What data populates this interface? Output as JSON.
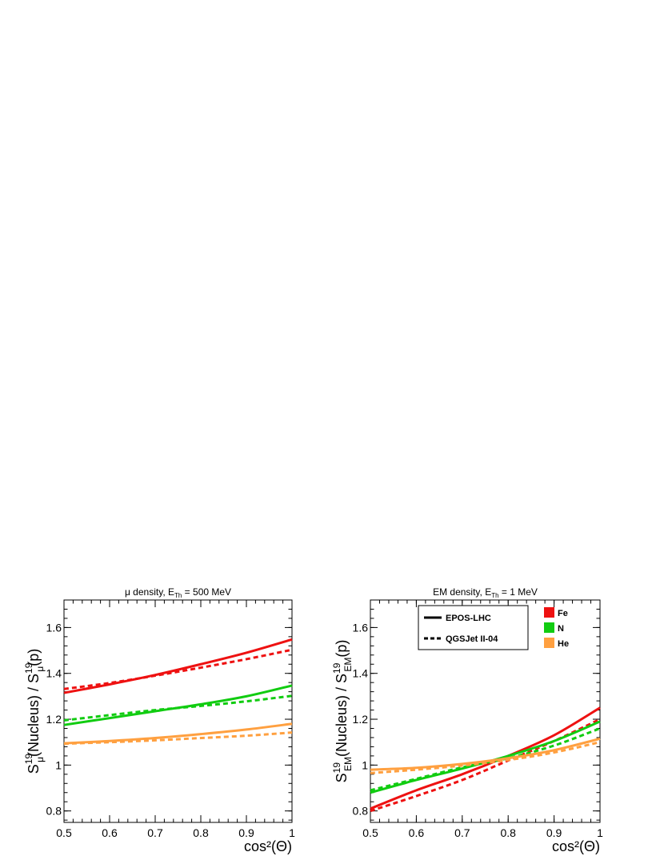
{
  "chart_data": [
    {
      "type": "line",
      "title": "μ density, E",
      "title_sub": "Th",
      "title_rest": " = 500 MeV",
      "ylabel": "S_μ^19(Nucleus) / S_μ^19(p)",
      "xlabel": "cos²(Θ)",
      "xlim": [
        0.5,
        1.0
      ],
      "ylim": [
        0.75,
        1.72
      ],
      "x_ticks": [
        0.5,
        0.6,
        0.7,
        0.8,
        0.9,
        1.0
      ],
      "x_tick_labels": [
        "0.5",
        "0.6",
        "0.7",
        "0.8",
        "0.9",
        "1"
      ],
      "y_ticks": [
        0.8,
        1.0,
        1.2,
        1.4,
        1.6
      ],
      "y_tick_labels": [
        "0.8",
        "1",
        "1.2",
        "1.4",
        "1.6"
      ],
      "x": [
        0.5,
        0.6,
        0.7,
        0.8,
        0.9,
        1.0
      ],
      "series": [
        {
          "name": "Fe",
          "model": "EPOS-LHC",
          "color": "#ee1111",
          "dash": "solid",
          "values": [
            1.315,
            1.352,
            1.393,
            1.44,
            1.49,
            1.548
          ]
        },
        {
          "name": "Fe",
          "model": "QGSJet II-04",
          "color": "#ee1111",
          "dash": "dashed",
          "values": [
            1.332,
            1.358,
            1.39,
            1.425,
            1.462,
            1.503
          ]
        },
        {
          "name": "N",
          "model": "EPOS-LHC",
          "color": "#11cc11",
          "dash": "solid",
          "values": [
            1.175,
            1.205,
            1.235,
            1.265,
            1.3,
            1.347
          ]
        },
        {
          "name": "N",
          "model": "QGSJet II-04",
          "color": "#11cc11",
          "dash": "dashed",
          "values": [
            1.195,
            1.218,
            1.24,
            1.258,
            1.278,
            1.302
          ]
        },
        {
          "name": "He",
          "model": "EPOS-LHC",
          "color": "#ffa040",
          "dash": "solid",
          "values": [
            1.095,
            1.105,
            1.118,
            1.135,
            1.155,
            1.18
          ]
        },
        {
          "name": "He",
          "model": "QGSJet II-04",
          "color": "#ffa040",
          "dash": "dashed",
          "values": [
            1.093,
            1.1,
            1.108,
            1.118,
            1.128,
            1.142
          ]
        }
      ],
      "grid": false
    },
    {
      "type": "line",
      "title": "EM density, E",
      "title_sub": "Th",
      "title_rest": " = 1 MeV",
      "ylabel": "S_EM^19(Nucleus) / S_EM^19(p)",
      "xlabel": "cos²(Θ)",
      "xlim": [
        0.5,
        1.0
      ],
      "ylim": [
        0.75,
        1.72
      ],
      "x_ticks": [
        0.5,
        0.6,
        0.7,
        0.8,
        0.9,
        1.0
      ],
      "x_tick_labels": [
        "0.5",
        "0.6",
        "0.7",
        "0.8",
        "0.9",
        "1"
      ],
      "y_ticks": [
        0.8,
        1.0,
        1.2,
        1.4,
        1.6
      ],
      "y_tick_labels": [
        "0.8",
        "1",
        "1.2",
        "1.4",
        "1.6"
      ],
      "x": [
        0.5,
        0.6,
        0.7,
        0.8,
        0.9,
        1.0
      ],
      "series": [
        {
          "name": "Fe",
          "model": "EPOS-LHC",
          "color": "#ee1111",
          "dash": "solid",
          "values": [
            0.81,
            0.89,
            0.96,
            1.04,
            1.13,
            1.25
          ]
        },
        {
          "name": "Fe",
          "model": "QGSJet II-04",
          "color": "#ee1111",
          "dash": "dashed",
          "values": [
            0.8,
            0.865,
            0.935,
            1.02,
            1.105,
            1.2
          ]
        },
        {
          "name": "N",
          "model": "EPOS-LHC",
          "color": "#11cc11",
          "dash": "solid",
          "values": [
            0.88,
            0.935,
            0.985,
            1.04,
            1.105,
            1.19
          ]
        },
        {
          "name": "N",
          "model": "QGSJet II-04",
          "color": "#11cc11",
          "dash": "dashed",
          "values": [
            0.89,
            0.94,
            0.99,
            1.03,
            1.085,
            1.16
          ]
        },
        {
          "name": "He",
          "model": "EPOS-LHC",
          "color": "#ffa040",
          "dash": "solid",
          "values": [
            0.98,
            0.988,
            1.005,
            1.03,
            1.065,
            1.115
          ]
        },
        {
          "name": "He",
          "model": "QGSJet II-04",
          "color": "#ffa040",
          "dash": "dashed",
          "values": [
            0.965,
            0.98,
            0.998,
            1.022,
            1.055,
            1.1
          ]
        }
      ],
      "grid": false,
      "legend_models": {
        "placement": "top-center",
        "entries": [
          {
            "label": "EPOS-LHC",
            "dash": "solid"
          },
          {
            "label": "QGSJet II-04",
            "dash": "dashed"
          }
        ]
      },
      "legend_nuclei": {
        "placement": "top-right",
        "entries": [
          {
            "label": "Fe",
            "color": "#ee1111"
          },
          {
            "label": "N",
            "color": "#11cc11"
          },
          {
            "label": "He",
            "color": "#ffa040"
          }
        ]
      }
    }
  ]
}
